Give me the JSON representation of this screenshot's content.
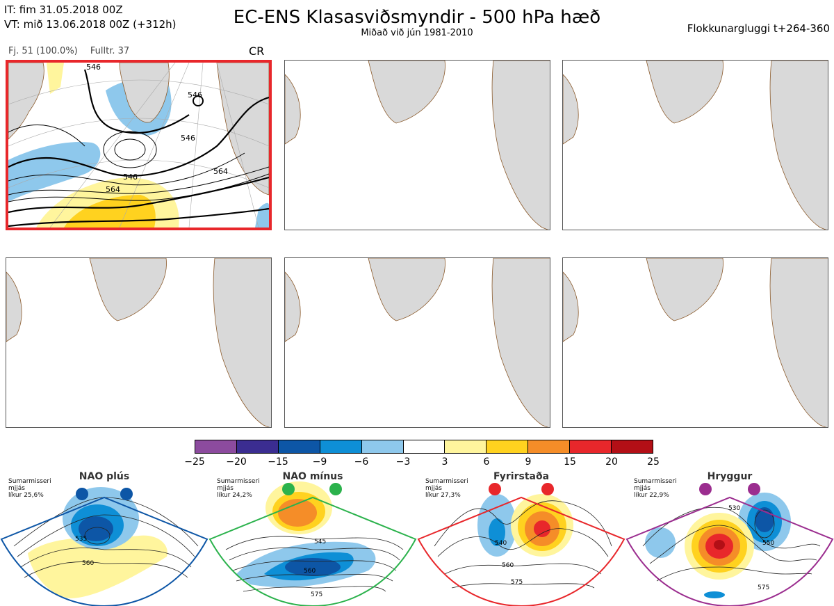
{
  "header": {
    "it_line": "IT: fim 31.05.2018 00Z",
    "vt_line": "VT: mið 13.06.2018 00Z  (+312h)",
    "title": "EC-ENS Klasasviðsmyndir - 500 hPa hæð",
    "subtitle": "Miðað við jún 1981-2010",
    "window": "Flokkunargluggi t+264-360"
  },
  "cluster_info": {
    "members": "Fj. 51 (100.0%)",
    "full": "Fulltr. 37",
    "regime_code": "CR"
  },
  "main_map": {
    "contour_labels": [
      "546",
      "546",
      "546",
      "546",
      "564",
      "564"
    ]
  },
  "colorbar": {
    "ticks": [
      "−25",
      "−20",
      "−15",
      "−9",
      "−6",
      "−3",
      "3",
      "6",
      "9",
      "15",
      "20",
      "25"
    ],
    "colors": [
      "#8c4b9e",
      "#3b2d91",
      "#0d56a6",
      "#0e8fd6",
      "#8ec8ec",
      "#ffffff",
      "#fff59d",
      "#ffd21f",
      "#f58d28",
      "#e8272b",
      "#b30f16"
    ]
  },
  "regimes": [
    {
      "name": "NAO plús",
      "season": "Sumarmisseri",
      "scale": "mjjás",
      "prob": "líkur 25,6%",
      "color": "#0d56a6",
      "labels": [
        "535",
        "560"
      ]
    },
    {
      "name": "NAO mínus",
      "season": "Sumarmisseri",
      "scale": "mjjás",
      "prob": "líkur 24,2%",
      "color": "#2bb24c",
      "labels": [
        "545",
        "560",
        "575"
      ]
    },
    {
      "name": "Fyrirstaða",
      "season": "Sumarmisseri",
      "scale": "mjjás",
      "prob": "líkur 27,3%",
      "color": "#e8272b",
      "labels": [
        "540",
        "560",
        "575"
      ]
    },
    {
      "name": "Hryggur",
      "season": "Sumarmisseri",
      "scale": "mjjás",
      "prob": "líkur 22,9%",
      "color": "#9b2d8f",
      "labels": [
        "530",
        "550",
        "575"
      ]
    }
  ]
}
